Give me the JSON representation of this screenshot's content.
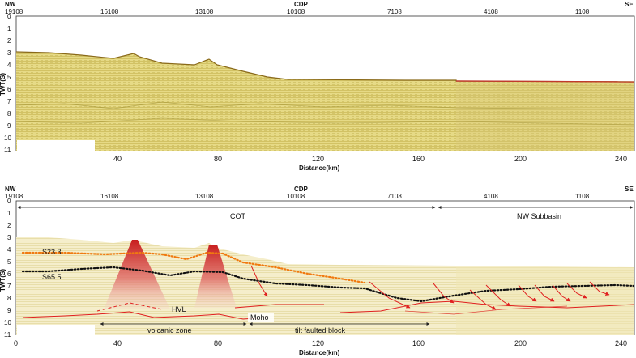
{
  "top_panel": {
    "left_end": "NW",
    "right_end": "SE",
    "axis_title": "CDP",
    "cdp_ticks": [
      "19108",
      "16108",
      "13108",
      "10108",
      "7108",
      "4108",
      "1108"
    ],
    "y_label": "TWT(S)",
    "y_ticks": [
      "0",
      "1",
      "2",
      "3",
      "4",
      "5",
      "6",
      "7",
      "8",
      "9",
      "10",
      "11"
    ],
    "x_ticks": [
      "40",
      "80",
      "120",
      "160",
      "200",
      "240"
    ],
    "x_label": "Distance(km)"
  },
  "bottom_panel": {
    "left_end": "NW",
    "right_end": "SE",
    "axis_title": "CDP",
    "cdp_ticks": [
      "19108",
      "16108",
      "13108",
      "10108",
      "7108",
      "4108",
      "1108"
    ],
    "y_label": "TWT(S)",
    "y_ticks": [
      "0",
      "1",
      "2",
      "3",
      "4",
      "5",
      "6",
      "7",
      "8",
      "9",
      "10",
      "11"
    ],
    "x_ticks": [
      "0",
      "40",
      "80",
      "120",
      "160",
      "200",
      "240"
    ],
    "x_label": "Distance(km)",
    "annotations": {
      "cot": "COT",
      "nw_subbasin": "NW Subbasin",
      "s23": "S23.3",
      "s65": "S65.5",
      "hvl": "HVL",
      "moho": "Moho",
      "volcanic_zone": "volcanic zone",
      "tilt_block": "tilt faulted block"
    }
  },
  "colors": {
    "seismic_base": "#e8dc88",
    "seismic_dark": "#9a8a2c",
    "horizon_s23": "#f07a10",
    "horizon_s65": "#111111",
    "fault_red": "#e02020",
    "hvl_red": "#d22020"
  }
}
